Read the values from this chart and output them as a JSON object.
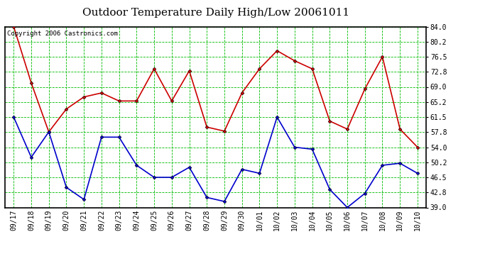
{
  "title": "Outdoor Temperature Daily High/Low 20061011",
  "copyright": "Copyright 2006 Castronics.com",
  "background_color": "#ffffff",
  "plot_bg_color": "#ffffff",
  "grid_color": "#00bb00",
  "labels": [
    "09/17",
    "09/18",
    "09/19",
    "09/20",
    "09/21",
    "09/22",
    "09/23",
    "09/24",
    "09/25",
    "09/26",
    "09/27",
    "09/28",
    "09/29",
    "09/30",
    "10/01",
    "10/02",
    "10/03",
    "10/04",
    "10/05",
    "10/06",
    "10/07",
    "10/08",
    "10/09",
    "10/10"
  ],
  "high_values": [
    84.0,
    70.0,
    57.8,
    63.5,
    66.5,
    67.5,
    65.5,
    65.5,
    73.5,
    65.5,
    73.0,
    59.0,
    58.0,
    67.5,
    73.5,
    78.0,
    75.5,
    73.5,
    60.5,
    58.5,
    68.5,
    76.5,
    58.5,
    54.0
  ],
  "low_values": [
    61.5,
    51.5,
    57.8,
    44.0,
    41.0,
    56.5,
    56.5,
    49.5,
    46.5,
    46.5,
    49.0,
    41.5,
    40.5,
    48.5,
    47.5,
    61.5,
    54.0,
    53.5,
    43.5,
    39.0,
    42.5,
    49.5,
    50.0,
    47.5
  ],
  "high_color": "#cc0000",
  "low_color": "#0000cc",
  "line_width": 1.2,
  "marker": "D",
  "marker_size": 2.5,
  "ylim": [
    39.0,
    84.0
  ],
  "yticks": [
    39.0,
    42.8,
    46.5,
    50.2,
    54.0,
    57.8,
    61.5,
    65.2,
    69.0,
    72.8,
    76.5,
    80.2,
    84.0
  ],
  "title_fontsize": 11,
  "tick_fontsize": 7,
  "copyright_fontsize": 6.5
}
